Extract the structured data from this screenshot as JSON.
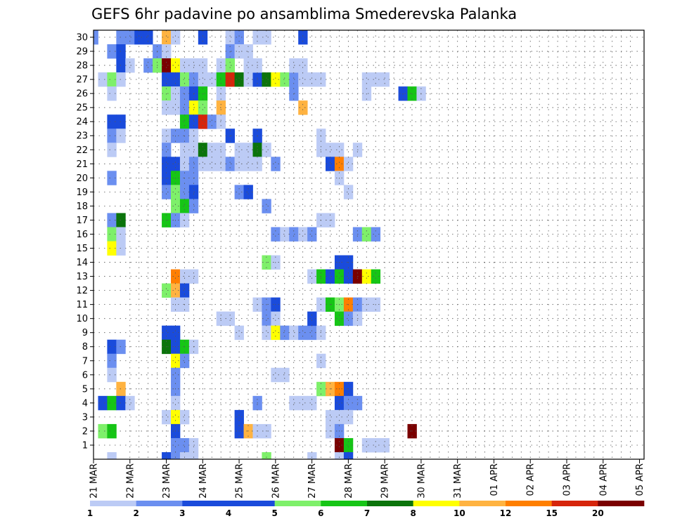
{
  "chart_data": {
    "type": "heatmap",
    "title": "GEFS 6hr padavine po ansamblima Smederevska Palanka",
    "xlabel": "",
    "ylabel": "",
    "x_tick_labels": [
      "21 MAR",
      "22 MAR",
      "23 MAR",
      "24 MAR",
      "25 MAR",
      "26 MAR",
      "27 MAR",
      "28 MAR",
      "29 MAR",
      "30 MAR",
      "31 MAR",
      "01 APR",
      "02 APR",
      "03 APR",
      "04 APR",
      "05 APR"
    ],
    "y_tick_labels": [
      "1",
      "2",
      "3",
      "4",
      "5",
      "6",
      "7",
      "8",
      "9",
      "10",
      "11",
      "12",
      "13",
      "14",
      "15",
      "16",
      "17",
      "18",
      "19",
      "20",
      "21",
      "22",
      "23",
      "24",
      "25",
      "26",
      "27",
      "28",
      "29",
      "30"
    ],
    "time_steps_per_day": 4,
    "ensemble_members": 30,
    "grid": true,
    "colorbar": {
      "placement": "bottom",
      "levels": [
        1,
        2,
        3,
        4,
        5,
        6,
        7,
        8,
        10,
        12,
        15,
        20
      ],
      "labels": [
        "1",
        "2",
        "3",
        "4",
        "5",
        "6",
        "7",
        "8",
        "10",
        "12",
        "15",
        "20"
      ],
      "colors": [
        "#bccbf5",
        "#6b8ff0",
        "#1a4bdb",
        "#1a4bdb",
        "#7ef06a",
        "#16c516",
        "#0b740b",
        "#ffff00",
        "#ffb341",
        "#ff7f00",
        "#d6250b",
        "#7a0000"
      ]
    },
    "cell_colors": [
      "#ffffff",
      "#bccbf5",
      "#6b8ff0",
      "#1a4bdb",
      "#7ef06a",
      "#16c516",
      "#0b740b",
      "#ffff00",
      "#ffb341",
      "#ff7f00",
      "#d6250b",
      "#7a0000"
    ],
    "cells": [
      [
        30,
        0,
        2
      ],
      [
        30,
        3,
        2
      ],
      [
        30,
        4,
        2
      ],
      [
        30,
        5,
        3
      ],
      [
        30,
        6,
        3
      ],
      [
        30,
        8,
        8
      ],
      [
        30,
        9,
        1
      ],
      [
        30,
        12,
        3
      ],
      [
        30,
        15,
        1
      ],
      [
        29,
        2,
        2
      ],
      [
        29,
        3,
        3
      ],
      [
        29,
        7,
        2
      ],
      [
        29,
        8,
        1
      ],
      [
        29,
        15,
        2
      ],
      [
        28,
        3,
        3
      ],
      [
        28,
        4,
        1
      ],
      [
        28,
        6,
        2
      ],
      [
        28,
        7,
        4
      ],
      [
        28,
        8,
        11
      ],
      [
        28,
        9,
        7
      ],
      [
        28,
        10,
        1
      ],
      [
        28,
        11,
        1
      ],
      [
        28,
        12,
        1
      ],
      [
        28,
        14,
        1
      ],
      [
        28,
        15,
        4
      ],
      [
        27,
        1,
        1
      ],
      [
        27,
        2,
        4
      ],
      [
        27,
        3,
        1
      ],
      [
        27,
        8,
        3
      ],
      [
        27,
        9,
        3
      ],
      [
        27,
        10,
        4
      ],
      [
        27,
        11,
        2
      ],
      [
        27,
        12,
        1
      ],
      [
        27,
        13,
        1
      ],
      [
        27,
        14,
        5
      ],
      [
        27,
        15,
        10
      ],
      [
        27,
        16,
        6
      ],
      [
        27,
        17,
        1
      ],
      [
        27,
        18,
        3
      ],
      [
        27,
        19,
        6
      ],
      [
        27,
        20,
        7
      ],
      [
        27,
        21,
        4
      ],
      [
        27,
        22,
        2
      ],
      [
        27,
        23,
        1
      ],
      [
        27,
        24,
        1
      ],
      [
        27,
        25,
        1
      ],
      [
        26,
        2,
        1
      ],
      [
        26,
        8,
        4
      ],
      [
        26,
        9,
        1
      ],
      [
        26,
        10,
        2
      ],
      [
        26,
        11,
        3
      ],
      [
        26,
        12,
        5
      ],
      [
        26,
        14,
        1
      ],
      [
        25,
        8,
        1
      ],
      [
        25,
        9,
        1
      ],
      [
        25,
        10,
        2
      ],
      [
        25,
        11,
        7
      ],
      [
        25,
        12,
        4
      ],
      [
        25,
        14,
        8
      ],
      [
        24,
        2,
        3
      ],
      [
        24,
        3,
        3
      ],
      [
        24,
        10,
        5
      ],
      [
        24,
        11,
        3
      ],
      [
        24,
        12,
        10
      ],
      [
        24,
        13,
        2
      ],
      [
        24,
        14,
        1
      ],
      [
        23,
        2,
        2
      ],
      [
        23,
        3,
        1
      ],
      [
        23,
        8,
        1
      ],
      [
        23,
        9,
        2
      ],
      [
        23,
        10,
        2
      ],
      [
        23,
        11,
        1
      ],
      [
        23,
        15,
        3
      ],
      [
        22,
        2,
        1
      ],
      [
        22,
        8,
        2
      ],
      [
        22,
        10,
        1
      ],
      [
        22,
        11,
        1
      ],
      [
        22,
        12,
        6
      ],
      [
        22,
        13,
        1
      ],
      [
        22,
        14,
        1
      ],
      [
        21,
        8,
        3
      ],
      [
        21,
        9,
        3
      ],
      [
        21,
        10,
        1
      ],
      [
        21,
        11,
        2
      ],
      [
        21,
        12,
        1
      ],
      [
        21,
        13,
        1
      ],
      [
        21,
        14,
        1
      ],
      [
        21,
        15,
        2
      ],
      [
        20,
        2,
        2
      ],
      [
        20,
        8,
        3
      ],
      [
        20,
        9,
        5
      ],
      [
        20,
        10,
        2
      ],
      [
        20,
        11,
        2
      ],
      [
        19,
        8,
        2
      ],
      [
        19,
        9,
        4
      ],
      [
        19,
        10,
        2
      ],
      [
        19,
        11,
        3
      ],
      [
        18,
        9,
        4
      ],
      [
        18,
        10,
        5
      ],
      [
        18,
        11,
        2
      ],
      [
        17,
        2,
        2
      ],
      [
        17,
        3,
        6
      ],
      [
        17,
        8,
        5
      ],
      [
        17,
        9,
        2
      ],
      [
        17,
        10,
        1
      ],
      [
        16,
        2,
        4
      ],
      [
        16,
        3,
        1
      ],
      [
        15,
        2,
        7
      ],
      [
        15,
        3,
        1
      ],
      [
        13,
        9,
        9
      ],
      [
        13,
        10,
        1
      ],
      [
        13,
        11,
        1
      ],
      [
        12,
        8,
        4
      ],
      [
        12,
        9,
        8
      ],
      [
        12,
        10,
        3
      ],
      [
        11,
        9,
        1
      ],
      [
        11,
        10,
        1
      ],
      [
        10,
        14,
        1
      ],
      [
        10,
        15,
        1
      ],
      [
        9,
        8,
        3
      ],
      [
        9,
        9,
        3
      ],
      [
        8,
        2,
        3
      ],
      [
        8,
        3,
        2
      ],
      [
        8,
        8,
        6
      ],
      [
        8,
        9,
        3
      ],
      [
        8,
        10,
        5
      ],
      [
        8,
        11,
        1
      ],
      [
        7,
        2,
        2
      ],
      [
        7,
        9,
        7
      ],
      [
        7,
        10,
        2
      ],
      [
        6,
        2,
        1
      ],
      [
        6,
        9,
        2
      ],
      [
        5,
        3,
        8
      ],
      [
        5,
        9,
        2
      ],
      [
        4,
        1,
        3
      ],
      [
        4,
        2,
        5
      ],
      [
        4,
        3,
        3
      ],
      [
        4,
        4,
        1
      ],
      [
        4,
        9,
        1
      ],
      [
        3,
        8,
        1
      ],
      [
        3,
        9,
        7
      ],
      [
        3,
        10,
        1
      ],
      [
        2,
        1,
        4
      ],
      [
        2,
        2,
        5
      ],
      [
        2,
        9,
        3
      ],
      [
        1,
        9,
        2
      ],
      [
        1,
        10,
        2
      ],
      [
        1,
        11,
        1
      ],
      [
        0,
        2,
        1
      ],
      [
        0,
        8,
        3
      ],
      [
        0,
        9,
        2
      ],
      [
        0,
        10,
        1
      ],
      [
        0,
        11,
        1
      ],
      [
        30,
        16,
        2
      ],
      [
        30,
        18,
        1
      ],
      [
        30,
        19,
        1
      ],
      [
        29,
        16,
        1
      ],
      [
        29,
        17,
        1
      ],
      [
        28,
        17,
        1
      ],
      [
        28,
        18,
        1
      ],
      [
        23,
        18,
        3
      ],
      [
        22,
        16,
        1
      ],
      [
        22,
        17,
        1
      ],
      [
        22,
        18,
        6
      ],
      [
        22,
        19,
        1
      ],
      [
        21,
        16,
        1
      ],
      [
        21,
        17,
        1
      ],
      [
        21,
        18,
        1
      ],
      [
        21,
        20,
        2
      ],
      [
        19,
        16,
        2
      ],
      [
        19,
        17,
        3
      ],
      [
        18,
        19,
        2
      ],
      [
        16,
        20,
        2
      ],
      [
        16,
        21,
        1
      ],
      [
        14,
        19,
        4
      ],
      [
        14,
        20,
        1
      ],
      [
        11,
        18,
        1
      ],
      [
        11,
        19,
        2
      ],
      [
        11,
        20,
        3
      ],
      [
        10,
        19,
        2
      ],
      [
        10,
        20,
        1
      ],
      [
        9,
        16,
        1
      ],
      [
        9,
        19,
        1
      ],
      [
        9,
        20,
        7
      ],
      [
        6,
        20,
        1
      ],
      [
        4,
        18,
        2
      ],
      [
        3,
        16,
        3
      ],
      [
        2,
        16,
        3
      ],
      [
        2,
        17,
        8
      ],
      [
        2,
        18,
        1
      ],
      [
        2,
        19,
        1
      ],
      [
        0,
        19,
        4
      ],
      [
        30,
        23,
        3
      ],
      [
        28,
        22,
        1
      ],
      [
        28,
        23,
        1
      ],
      [
        27,
        30,
        1
      ],
      [
        27,
        31,
        1
      ],
      [
        27,
        32,
        1
      ],
      [
        26,
        22,
        2
      ],
      [
        26,
        34,
        3
      ],
      [
        26,
        35,
        5
      ],
      [
        26,
        36,
        1
      ],
      [
        25,
        23,
        8
      ],
      [
        23,
        25,
        1
      ],
      [
        22,
        25,
        1
      ],
      [
        22,
        26,
        1
      ],
      [
        22,
        27,
        1
      ],
      [
        22,
        29,
        1
      ],
      [
        21,
        26,
        3
      ],
      [
        21,
        27,
        9
      ],
      [
        21,
        28,
        1
      ],
      [
        20,
        27,
        1
      ],
      [
        19,
        28,
        1
      ],
      [
        17,
        25,
        1
      ],
      [
        17,
        26,
        1
      ],
      [
        16,
        22,
        2
      ],
      [
        16,
        23,
        1
      ],
      [
        16,
        24,
        2
      ],
      [
        16,
        29,
        2
      ],
      [
        16,
        30,
        4
      ],
      [
        16,
        31,
        2
      ],
      [
        14,
        27,
        3
      ],
      [
        14,
        28,
        3
      ],
      [
        13,
        24,
        1
      ],
      [
        13,
        25,
        5
      ],
      [
        13,
        26,
        3
      ],
      [
        13,
        27,
        5
      ],
      [
        13,
        28,
        3
      ],
      [
        13,
        29,
        11
      ],
      [
        13,
        30,
        7
      ],
      [
        13,
        31,
        5
      ],
      [
        11,
        25,
        1
      ],
      [
        11,
        26,
        5
      ],
      [
        11,
        27,
        4
      ],
      [
        11,
        28,
        9
      ],
      [
        11,
        29,
        2
      ],
      [
        11,
        30,
        1
      ],
      [
        11,
        31,
        1
      ],
      [
        10,
        27,
        5
      ],
      [
        10,
        28,
        2
      ],
      [
        10,
        29,
        1
      ],
      [
        9,
        21,
        2
      ],
      [
        9,
        22,
        1
      ],
      [
        7,
        25,
        1
      ],
      [
        6,
        21,
        1
      ],
      [
        5,
        25,
        4
      ],
      [
        5,
        26,
        8
      ],
      [
        5,
        27,
        9
      ],
      [
        5,
        28,
        3
      ],
      [
        4,
        22,
        1
      ],
      [
        4,
        23,
        1
      ],
      [
        4,
        24,
        1
      ],
      [
        4,
        27,
        3
      ],
      [
        4,
        28,
        2
      ],
      [
        4,
        29,
        2
      ],
      [
        3,
        26,
        1
      ],
      [
        3,
        27,
        1
      ],
      [
        3,
        28,
        1
      ],
      [
        2,
        26,
        1
      ],
      [
        2,
        27,
        2
      ],
      [
        1,
        27,
        11
      ],
      [
        1,
        28,
        5
      ],
      [
        1,
        30,
        1
      ],
      [
        1,
        31,
        1
      ],
      [
        1,
        32,
        1
      ],
      [
        0,
        24,
        1
      ],
      [
        0,
        27,
        1
      ],
      [
        0,
        28,
        3
      ],
      [
        2,
        35,
        11
      ],
      [
        9,
        23,
        2
      ],
      [
        9,
        24,
        2
      ],
      [
        9,
        25,
        1
      ],
      [
        10,
        24,
        3
      ],
      [
        26,
        30,
        1
      ]
    ]
  }
}
